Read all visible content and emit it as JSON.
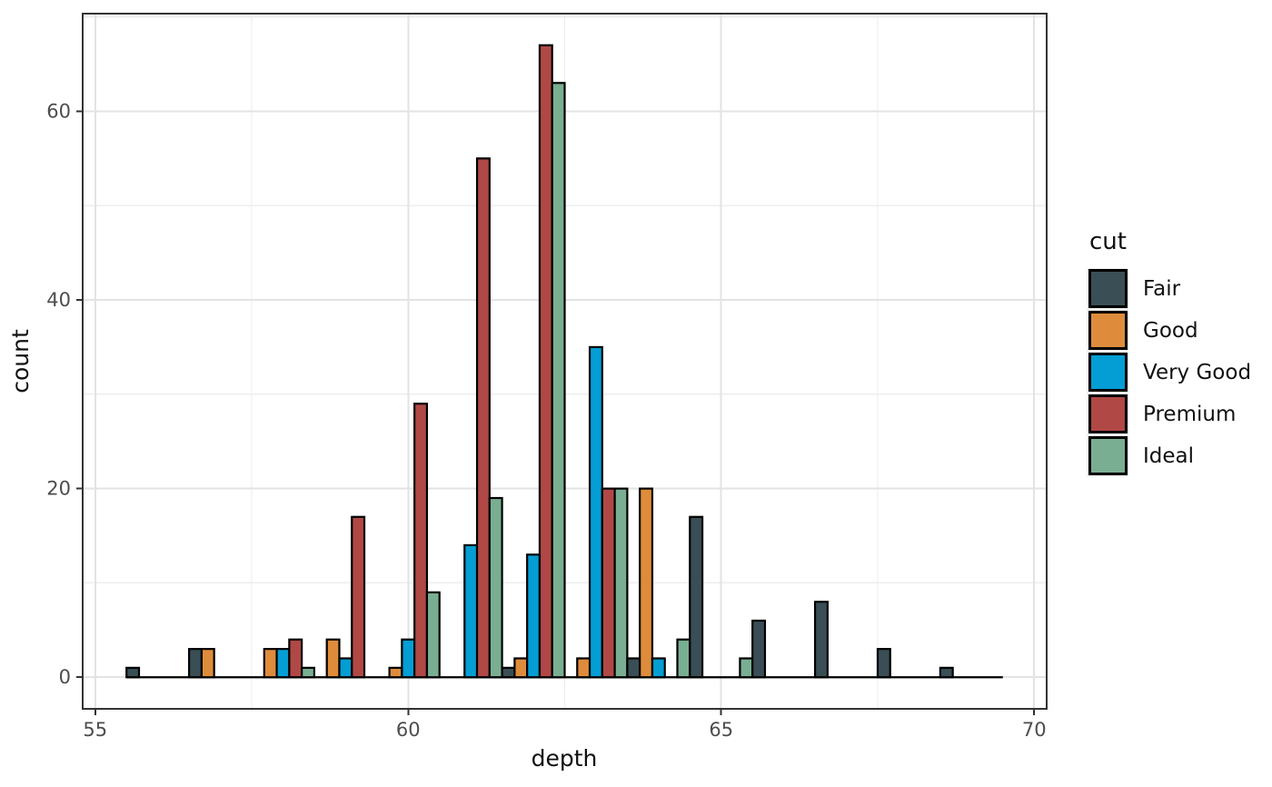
{
  "figure": {
    "background": "#FFFFFF",
    "panel_border_color": "#333333",
    "grid_major_color": "#E3E3E3",
    "grid_minor_color": "#EDEDED",
    "axis_tick_color": "#333333",
    "tick_label_color": "#4D4D4D",
    "bar_outline_color": "#000000"
  },
  "chart_data": {
    "type": "bar",
    "subtype": "dodged-histogram",
    "title": "",
    "xlabel": "depth",
    "ylabel": "count",
    "bin_width": 1,
    "categories": [
      56,
      57,
      58,
      59,
      60,
      61,
      62,
      63,
      64,
      65,
      66,
      67,
      68,
      69
    ],
    "series": [
      {
        "name": "Fair",
        "color": "#3A4E56",
        "values": [
          1,
          3,
          0,
          0,
          0,
          0,
          1,
          0,
          2,
          17,
          6,
          8,
          3,
          1
        ]
      },
      {
        "name": "Good",
        "color": "#DE8C3C",
        "values": [
          0,
          3,
          3,
          4,
          1,
          0,
          2,
          2,
          20,
          0,
          0,
          0,
          0,
          0
        ]
      },
      {
        "name": "Very Good",
        "color": "#049DD4",
        "values": [
          0,
          0,
          3,
          2,
          4,
          14,
          13,
          35,
          2,
          0,
          0,
          0,
          0,
          0
        ]
      },
      {
        "name": "Premium",
        "color": "#B04846",
        "values": [
          0,
          0,
          4,
          17,
          29,
          55,
          67,
          20,
          0,
          0,
          0,
          0,
          0,
          0
        ]
      },
      {
        "name": "Ideal",
        "color": "#7AAE92",
        "values": [
          0,
          0,
          1,
          0,
          9,
          19,
          63,
          20,
          4,
          2,
          0,
          0,
          0,
          0
        ]
      }
    ],
    "x_ticks": [
      55,
      60,
      65,
      70
    ],
    "y_ticks": [
      0,
      20,
      40,
      60
    ],
    "x_minor": [
      57.5,
      62.5,
      67.5
    ],
    "y_minor": [
      10,
      30,
      50,
      70
    ],
    "xlim": [
      54.8,
      70.2
    ],
    "ylim": [
      0,
      67
    ],
    "data_range": [
      55.5,
      69.5
    ],
    "grid": true,
    "legend": {
      "title": "cut",
      "position": "right"
    }
  }
}
